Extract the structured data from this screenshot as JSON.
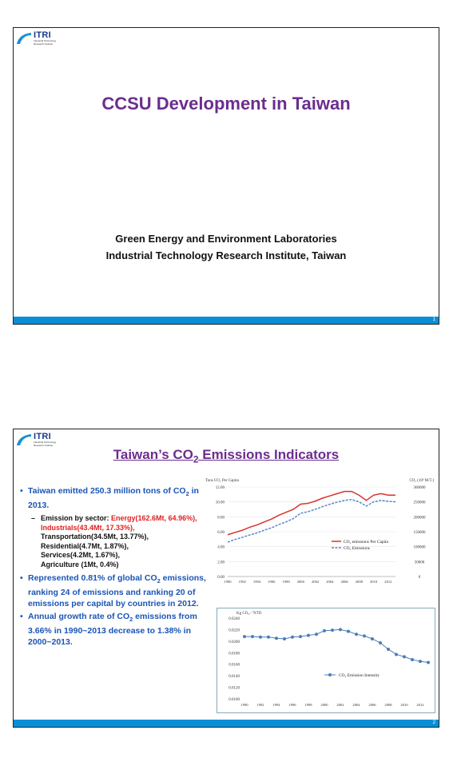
{
  "logo": {
    "name": "ITRI",
    "subtitle": "Industrial Technology Research Institute"
  },
  "slide1": {
    "title": "CCSU Development in Taiwan",
    "org_line1": "Green Energy and Environment Laboratories",
    "org_line2": "Industrial Technology Research Institute, Taiwan",
    "page": "1"
  },
  "slide2": {
    "title_pre": "Taiwan’s CO",
    "title_sub": "2",
    "title_post": " Emissions Indicators",
    "page": "2",
    "bullets": {
      "b1_pre": "Taiwan emitted 250.3 million tons of CO",
      "b1_sub": "2",
      "b1_post": " in 2013.",
      "sector_label": "Emission by sector: ",
      "sector_red": "Energy(162.6Mt, 64.96%), Industrials(43.4Mt, 17.33%),",
      "sector_rest1": "Transportation(34.5Mt, 13.77%),",
      "sector_rest2": "Residential(4.7Mt,  1.87%),",
      "sector_rest3": "Services(4.2Mt, 1.67%),",
      "sector_rest4": "Agriculture (1Mt, 0.4%)",
      "b2_pre": "Represented 0.81% of global CO",
      "b2_sub": "2",
      "b2_post": " emissions, ranking 24 of emissions and ranking 20 of emissions per capital by countries in 2012.",
      "b3_pre": "Annual growth rate of CO",
      "b3_sub": "2",
      "b3_post": " emissions from 3.66% in 1990~2013 decrease to 1.38% in 2000~2013."
    }
  },
  "chart_data": [
    {
      "type": "line",
      "title": "",
      "ylabel_left": "Tons CO₂ Per Capita",
      "ylabel_right": "CO₂ (10³ M.T.)",
      "x": [
        1990,
        1991,
        1992,
        1993,
        1994,
        1995,
        1996,
        1997,
        1998,
        1999,
        2000,
        2001,
        2002,
        2003,
        2004,
        2005,
        2006,
        2007,
        2008,
        2009,
        2010,
        2011,
        2012,
        2013
      ],
      "x_ticks": [
        "1990",
        "1992",
        "1994",
        "1996",
        "1998",
        "2000",
        "2002",
        "2004",
        "2006",
        "2008",
        "2010",
        "2012"
      ],
      "ylim_left": [
        0,
        12
      ],
      "ylim_right": [
        0,
        300000
      ],
      "y_ticks_left": [
        "0.00",
        "2.00",
        "4.00",
        "6.00",
        "8.00",
        "10.00",
        "12.00"
      ],
      "y_ticks_right": [
        "0",
        "50000",
        "100000",
        "150000",
        "200000",
        "250000",
        "300000"
      ],
      "legend": "right",
      "series": [
        {
          "name": "CO₂ emissions Per Capita",
          "axis": "left",
          "color": "#d9322e",
          "style": "solid",
          "values": [
            5.6,
            5.9,
            6.2,
            6.6,
            6.9,
            7.3,
            7.7,
            8.2,
            8.6,
            9.0,
            9.7,
            9.8,
            10.1,
            10.5,
            10.8,
            11.1,
            11.4,
            11.4,
            10.9,
            10.2,
            10.9,
            11.1,
            10.9,
            10.9
          ]
        },
        {
          "name": "CO₂ Emissions",
          "axis": "right",
          "color": "#5b87c6",
          "style": "dashed",
          "values": [
            115000,
            124000,
            131000,
            139000,
            146000,
            155000,
            163000,
            174000,
            183000,
            194000,
            212000,
            217000,
            225000,
            234000,
            242000,
            249000,
            255000,
            258000,
            250000,
            236000,
            250000,
            255000,
            252000,
            250000
          ]
        }
      ]
    },
    {
      "type": "line",
      "title": "",
      "ylabel": "Kg CO₂／NTD",
      "x": [
        1990,
        1991,
        1992,
        1993,
        1994,
        1995,
        1996,
        1997,
        1998,
        1999,
        2000,
        2001,
        2002,
        2003,
        2004,
        2005,
        2006,
        2007,
        2008,
        2009,
        2010,
        2011,
        2012,
        2013
      ],
      "x_ticks": [
        "1990",
        "1992",
        "1994",
        "1996",
        "1998",
        "2000",
        "2002",
        "2004",
        "2006",
        "2008",
        "2010",
        "2012"
      ],
      "ylim": [
        0.01,
        0.024
      ],
      "y_ticks": [
        "0.0100",
        "0.0120",
        "0.0140",
        "0.0160",
        "0.0180",
        "0.0200",
        "0.0220",
        "0.0240"
      ],
      "legend": "right",
      "series": [
        {
          "name": "CO₂ Emission Intensity",
          "color": "#4a7db8",
          "marker": "circle",
          "values": [
            0.0208,
            0.0208,
            0.0207,
            0.0207,
            0.0205,
            0.0204,
            0.0207,
            0.0208,
            0.021,
            0.0212,
            0.0218,
            0.0219,
            0.022,
            0.0217,
            0.0212,
            0.0209,
            0.0204,
            0.0197,
            0.0186,
            0.0177,
            0.0173,
            0.0168,
            0.0165,
            0.0163
          ]
        }
      ]
    }
  ]
}
